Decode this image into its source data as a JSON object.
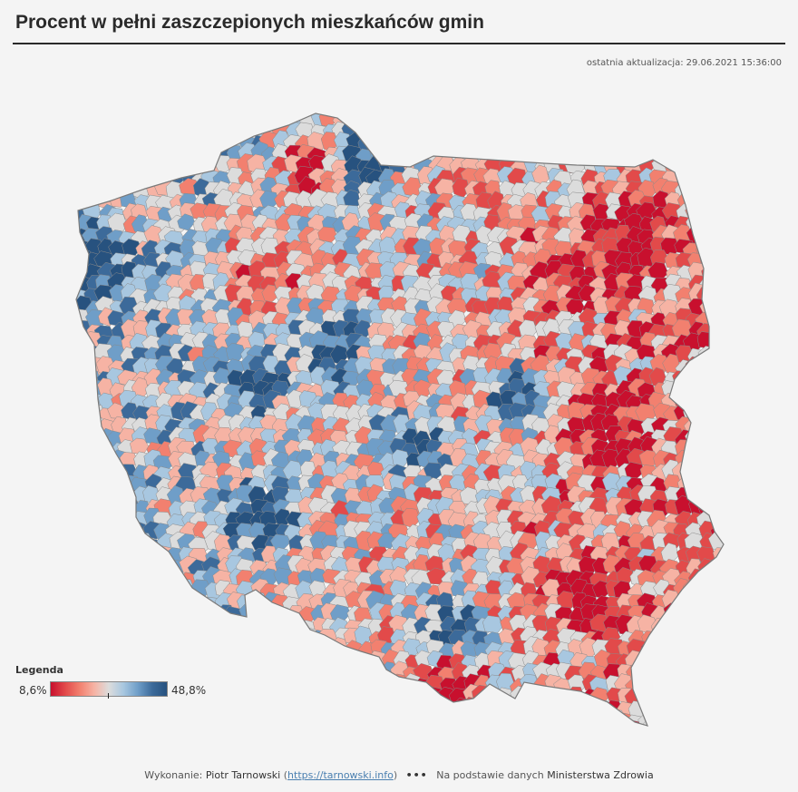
{
  "header": {
    "title": "Procent w pełni zaszczepionych mieszkańców gmin",
    "updated_label": "ostatnia aktualizacja:",
    "updated_value": "29.06.2021 15:36:00"
  },
  "legend": {
    "title": "Legenda",
    "min_label": "8,6%",
    "max_label": "48,8%",
    "colors": [
      "#c8102e",
      "#e24a4a",
      "#f2806f",
      "#f6b3a4",
      "#dcdcdc",
      "#a8c7e0",
      "#6f9ec8",
      "#3c6a9a",
      "#27527f"
    ]
  },
  "footer": {
    "made_by_label": "Wykonanie:",
    "author": "Piotr Tarnowski",
    "url": "https://tarnowski.info",
    "separator": "•••",
    "source_label": "Na podstawie danych",
    "source_name": "Ministerstwa Zdrowia"
  }
}
